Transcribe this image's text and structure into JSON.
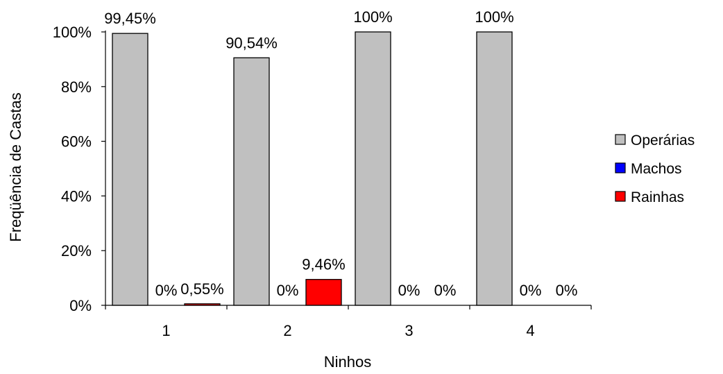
{
  "chart_data": {
    "type": "bar",
    "categories": [
      "1",
      "2",
      "3",
      "4"
    ],
    "series": [
      {
        "name": "Operárias",
        "color": "#c0c0c0",
        "values": [
          99.45,
          90.54,
          100,
          100
        ],
        "labels": [
          "99,45%",
          "90,54%",
          "100%",
          "100%"
        ]
      },
      {
        "name": "Machos",
        "color": "#0000ff",
        "values": [
          0,
          0,
          0,
          0
        ],
        "labels": [
          "0%",
          "0%",
          "0%",
          "0%"
        ]
      },
      {
        "name": "Rainhas",
        "color": "#ff0000",
        "values": [
          0.55,
          9.46,
          0,
          0
        ],
        "labels": [
          "0,55%",
          "9,46%",
          "0%",
          "0%"
        ]
      }
    ],
    "xlabel": "Ninhos",
    "ylabel": "Freqüência de Castas",
    "ylim": [
      0,
      100
    ],
    "yticks": [
      0,
      20,
      40,
      60,
      80,
      100
    ],
    "ytick_labels": [
      "0%",
      "20%",
      "40%",
      "60%",
      "80%",
      "100%"
    ],
    "legend_position": "right",
    "grid": false
  }
}
